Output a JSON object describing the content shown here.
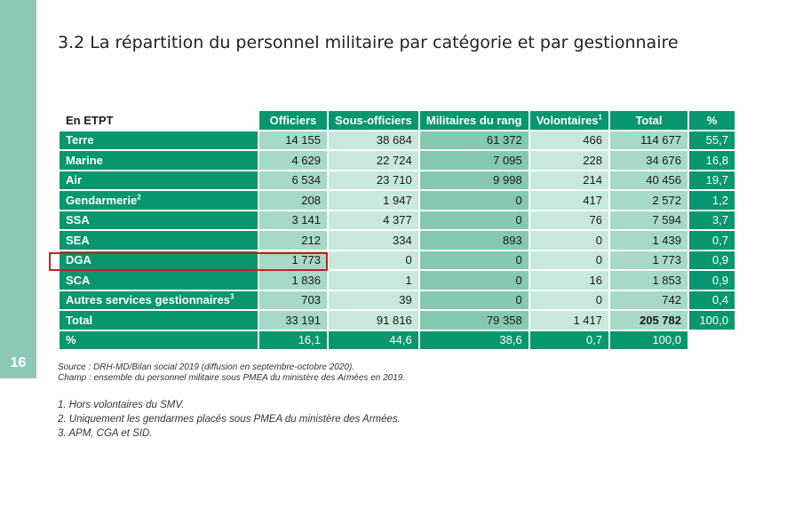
{
  "page_number": "16",
  "title": "3.2 La répartition du personnel militaire par catégorie et par gestionnaire",
  "table": {
    "corner": "En ETPT",
    "headers": [
      {
        "label": "Officiers",
        "sup": ""
      },
      {
        "label": "Sous-officiers",
        "sup": ""
      },
      {
        "label": "Militaires du rang",
        "sup": ""
      },
      {
        "label": "Volontaires",
        "sup": "1"
      },
      {
        "label": "Total",
        "sup": ""
      },
      {
        "label": "%",
        "sup": ""
      }
    ],
    "rows": [
      {
        "label": "Terre",
        "sup": "",
        "values": [
          "14 155",
          "38 684",
          "61 372",
          "466",
          "114 677",
          "55,7"
        ]
      },
      {
        "label": "Marine",
        "sup": "",
        "values": [
          "4 629",
          "22 724",
          "7 095",
          "228",
          "34 676",
          "16,8"
        ]
      },
      {
        "label": "Air",
        "sup": "",
        "values": [
          "6 534",
          "23 710",
          "9 998",
          "214",
          "40 456",
          "19,7"
        ]
      },
      {
        "label": "Gendarmerie",
        "sup": "2",
        "values": [
          "208",
          "1 947",
          "0",
          "417",
          "2 572",
          "1,2"
        ]
      },
      {
        "label": "SSA",
        "sup": "",
        "values": [
          "3 141",
          "4 377",
          "0",
          "76",
          "7 594",
          "3,7"
        ]
      },
      {
        "label": "SEA",
        "sup": "",
        "values": [
          "212",
          "334",
          "893",
          "0",
          "1 439",
          "0,7"
        ]
      },
      {
        "label": "DGA",
        "sup": "",
        "values": [
          "1 773",
          "0",
          "0",
          "0",
          "1 773",
          "0,9"
        ]
      },
      {
        "label": "SCA",
        "sup": "",
        "values": [
          "1 836",
          "1",
          "0",
          "16",
          "1 853",
          "0,9"
        ]
      },
      {
        "label": "Autres services gestionnaires",
        "sup": "3",
        "values": [
          "703",
          "39",
          "0",
          "0",
          "742",
          "0,4"
        ]
      },
      {
        "label": "Total",
        "sup": "",
        "values": [
          "33 191",
          "91 816",
          "79 358",
          "1 417",
          "205 782",
          "100,0"
        ]
      }
    ],
    "percent_row": {
      "label": "%",
      "values": [
        "16,1",
        "44,6",
        "38,6",
        "0,7",
        "100,0"
      ]
    }
  },
  "source": "Source : DRH-MD/Bilan social 2019 (diffusion en septembre-octobre 2020).",
  "scope": "Champ : ensemble du personnel militaire sous PMEA du ministère des Armées en 2019.",
  "footnotes": [
    {
      "num": "1.",
      "text": "Hors volontaires du SMV."
    },
    {
      "num": "2.",
      "text": "Uniquement les gendarmes placés sous PMEA du ministère des Armées."
    },
    {
      "num": "3.",
      "text": "APM, CGA et SID."
    }
  ],
  "colors": {
    "header_green": "#08966e",
    "sidebar_green": "#8cc8b5",
    "highlight_red": "#c81e1e"
  }
}
